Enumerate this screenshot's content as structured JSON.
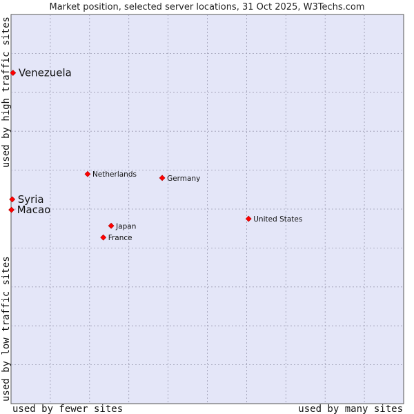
{
  "chart_data": {
    "type": "scatter",
    "title": "Market position, selected server locations, 31 Oct 2025, W3Techs.com",
    "xlabel_left": "used by fewer sites",
    "xlabel_right": "used by many sites",
    "ylabel_bottom": "used by low traffic sites",
    "ylabel_top": "used by high traffic sites",
    "xlim": [
      0,
      100
    ],
    "ylim": [
      0,
      100
    ],
    "grid": true,
    "marker_color": "#ff0000",
    "plot_background": "#e4e6f8",
    "points": [
      {
        "name": "Venezuela",
        "x": 0.5,
        "y": 85.0,
        "label_size": "large"
      },
      {
        "name": "Syria",
        "x": 0.3,
        "y": 52.5,
        "label_size": "large"
      },
      {
        "name": "Macao",
        "x": 0.1,
        "y": 49.8,
        "label_size": "large"
      },
      {
        "name": "Netherlands",
        "x": 19.5,
        "y": 59.0,
        "label_size": "small"
      },
      {
        "name": "Germany",
        "x": 38.5,
        "y": 58.0,
        "label_size": "small"
      },
      {
        "name": "United States",
        "x": 60.5,
        "y": 47.5,
        "label_size": "small"
      },
      {
        "name": "Japan",
        "x": 25.5,
        "y": 45.7,
        "label_size": "small"
      },
      {
        "name": "France",
        "x": 23.5,
        "y": 42.7,
        "label_size": "small"
      }
    ]
  }
}
